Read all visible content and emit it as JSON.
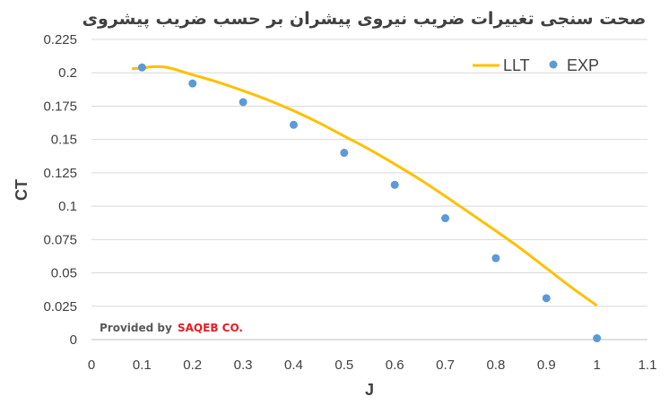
{
  "chart_data": {
    "type": "line+scatter",
    "title": "صحت سنجی تغییرات ضریب نیروی پیشران بر حسب ضریب پیشروی",
    "xlabel": "J",
    "ylabel": "CT",
    "xlim": [
      0,
      1.1
    ],
    "ylim": [
      0,
      0.225
    ],
    "x_ticks": [
      "0",
      "0.1",
      "0.2",
      "0.3",
      "0.4",
      "0.5",
      "0.6",
      "0.7",
      "0.8",
      "0.9",
      "1",
      "1.1"
    ],
    "y_ticks": [
      "0",
      "0.025",
      "0.05",
      "0.075",
      "0.1",
      "0.125",
      "0.15",
      "0.175",
      "0.2",
      "0.225"
    ],
    "grid": "horizontal",
    "legend_position": "top-right",
    "series": [
      {
        "name": "LLT",
        "style": "line",
        "color": "#FFC000",
        "x": [
          0.08,
          0.1,
          0.12,
          0.15,
          0.2,
          0.25,
          0.3,
          0.35,
          0.4,
          0.45,
          0.5,
          0.55,
          0.6,
          0.65,
          0.7,
          0.75,
          0.8,
          0.85,
          0.9,
          0.95,
          1.0
        ],
        "y": [
          0.203,
          0.2035,
          0.2045,
          0.204,
          0.1985,
          0.193,
          0.1865,
          0.1795,
          0.1715,
          0.1625,
          0.1525,
          0.1425,
          0.1315,
          0.12,
          0.1075,
          0.0945,
          0.0815,
          0.068,
          0.0535,
          0.039,
          0.0255
        ]
      },
      {
        "name": "EXP",
        "style": "scatter",
        "color": "#5B9BD5",
        "x": [
          0.1,
          0.2,
          0.3,
          0.4,
          0.5,
          0.6,
          0.7,
          0.8,
          0.9,
          1.0
        ],
        "y": [
          0.204,
          0.192,
          0.178,
          0.161,
          0.14,
          0.116,
          0.091,
          0.061,
          0.031,
          0.001
        ]
      }
    ]
  },
  "watermark": {
    "prefix": "Provided by",
    "brand": "SAQEB CO."
  }
}
